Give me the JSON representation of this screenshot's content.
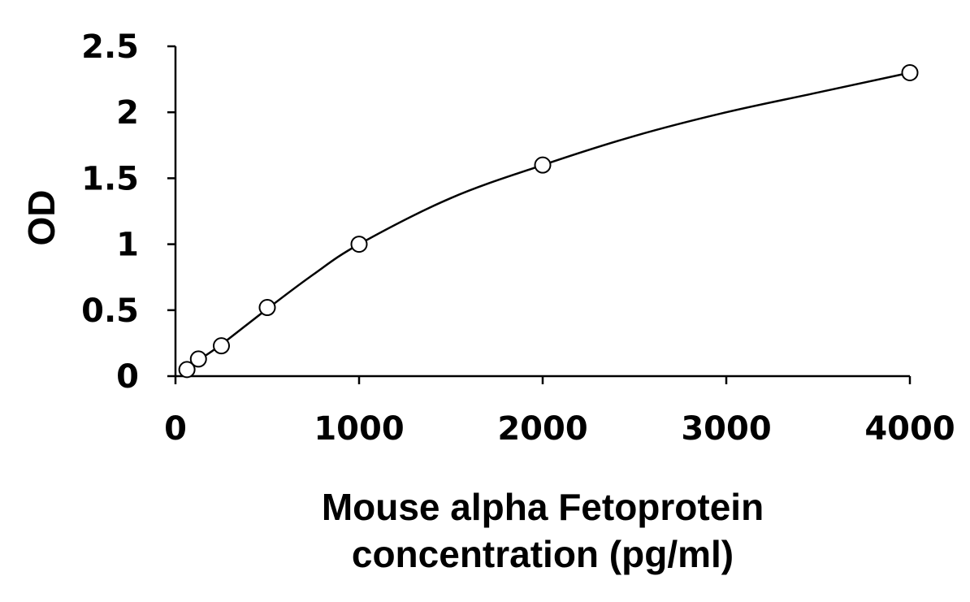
{
  "chart_data": {
    "type": "scatter",
    "title": "",
    "xlabel_lines": [
      "Mouse alpha Fetoprotein",
      "concentration (pg/ml)"
    ],
    "ylabel": "OD",
    "xlim": [
      0,
      4000
    ],
    "ylim": [
      0,
      2.5
    ],
    "x_ticks": [
      0,
      1000,
      2000,
      3000,
      4000
    ],
    "x_tick_labels": [
      "0",
      "1000",
      "2000",
      "3000",
      "4000"
    ],
    "y_ticks": [
      0,
      0.5,
      1,
      1.5,
      2,
      2.5
    ],
    "y_tick_labels": [
      "0",
      "0.5",
      "1",
      "1.5",
      "2",
      "2.5"
    ],
    "grid": false,
    "legend": "none",
    "series": [
      {
        "marker": "open-circle",
        "x": [
          62.5,
          125,
          250,
          500,
          1000,
          2000,
          4000
        ],
        "y": [
          0.05,
          0.13,
          0.23,
          0.52,
          1.0,
          1.6,
          2.3
        ]
      }
    ],
    "fit_curve": {
      "x": [
        62.5,
        125,
        250,
        500,
        750,
        1000,
        1500,
        2000,
        2500,
        3000,
        3500,
        4000
      ],
      "y": [
        0.05,
        0.12,
        0.24,
        0.51,
        0.77,
        1.0,
        1.35,
        1.6,
        1.82,
        2.0,
        2.15,
        2.3
      ]
    },
    "colors": {
      "axis": "#000000",
      "marker_fill": "#ffffff",
      "line": "#000000"
    }
  }
}
